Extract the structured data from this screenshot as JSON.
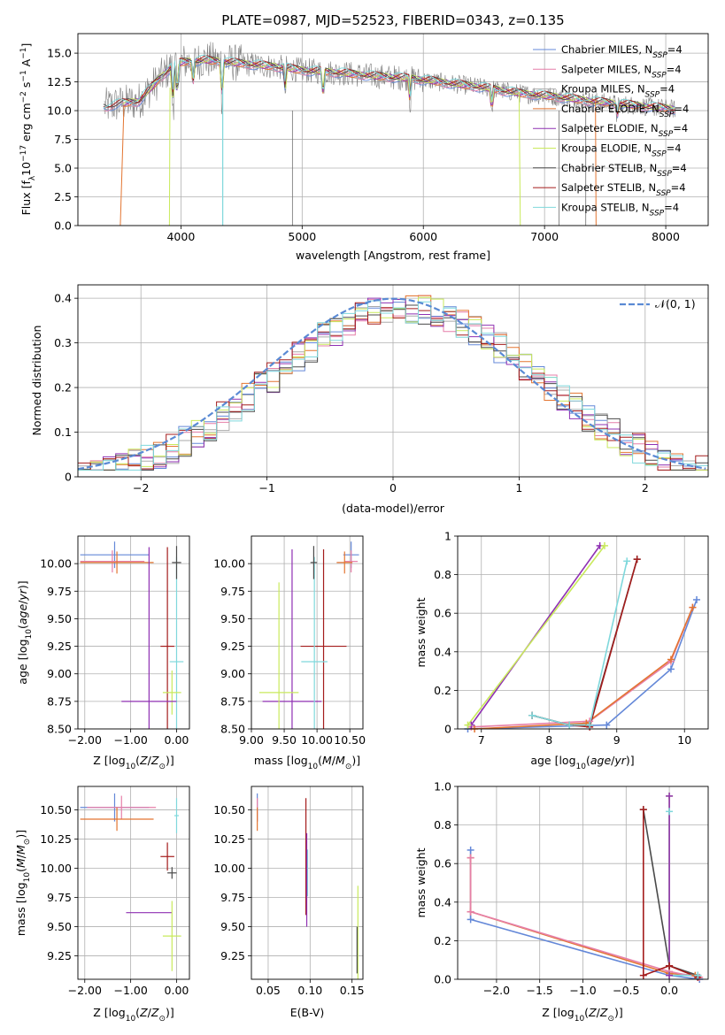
{
  "colors": {
    "Chabrier MILES": "#6488d8",
    "Salpeter MILES": "#e67fa8",
    "Kroupa MILES": "#aaaaaa",
    "Chabrier ELODIE": "#e37531",
    "Salpeter ELODIE": "#8f30b3",
    "Kroupa ELODIE": "#c9ea5c",
    "Chabrier STELIB": "#4a4a4a",
    "Salpeter STELIB": "#a41c1c",
    "Kroupa STELIB": "#7fd8dc",
    "gaussian": "#5a8ad4"
  },
  "chart_data": [
    {
      "id": "spectrum",
      "type": "line",
      "title": "PLATE=0987, MJD=52523, FIBERID=0343, z=0.135",
      "xlabel": "wavelength [Angstrom, rest frame]",
      "ylabel": "Flux [f_λ 10^-17 erg cm^-2 s^-1 A^-1]",
      "xlim": [
        3150,
        8350
      ],
      "ylim": [
        0,
        16.7
      ],
      "xticks": [
        4000,
        5000,
        6000,
        7000,
        8000
      ],
      "yticks": [
        0.0,
        2.5,
        5.0,
        7.5,
        10.0,
        12.5,
        15.0
      ],
      "legend": "top-right",
      "series": [
        {
          "name": "Chabrier MILES, N_SSP=4"
        },
        {
          "name": "Salpeter MILES, N_SSP=4"
        },
        {
          "name": "Kroupa MILES, N_SSP=4"
        },
        {
          "name": "Chabrier ELODIE, N_SSP=4"
        },
        {
          "name": "Salpeter ELODIE, N_SSP=4"
        },
        {
          "name": "Kroupa ELODIE, N_SSP=4"
        },
        {
          "name": "Chabrier STELIB, N_SSP=4"
        },
        {
          "name": "Salpeter STELIB, N_SSP=4"
        },
        {
          "name": "Kroupa STELIB, N_SSP=4"
        }
      ],
      "continuum": {
        "x": [
          3350,
          3500,
          3650,
          3800,
          3900,
          4000,
          4200,
          4500,
          4800,
          5000,
          5300,
          5600,
          5900,
          6200,
          6500,
          6800,
          7100,
          7400,
          7700,
          8000,
          8100
        ],
        "y": [
          10.3,
          10.6,
          10.8,
          12.5,
          13.6,
          14.2,
          14.4,
          14.1,
          13.8,
          13.5,
          13.3,
          13.0,
          12.8,
          12.4,
          12.0,
          11.5,
          11.2,
          10.8,
          10.5,
          10.2,
          10.1
        ]
      }
    },
    {
      "id": "residuals",
      "type": "bar",
      "xlabel": "(data-model)/error",
      "ylabel": "Normed distribution",
      "xlim": [
        -2.5,
        2.5
      ],
      "ylim": [
        0,
        0.43
      ],
      "xticks": [
        -2,
        -1,
        0,
        1,
        2
      ],
      "yticks": [
        0.0,
        0.1,
        0.2,
        0.3,
        0.4
      ],
      "legend": "top-right",
      "gaussian_label": "N(0,1)"
    },
    {
      "id": "age-vs-Z",
      "type": "scatter",
      "xlabel": "Z [log10(Z/Z⊙)]",
      "ylabel": "age [log10(age/yr)]",
      "xlim": [
        -2.15,
        0.28
      ],
      "ylim": [
        8.5,
        10.25
      ],
      "xticks": [
        -2,
        -1,
        0
      ],
      "yticks": [
        8.5,
        8.75,
        9.0,
        9.25,
        9.5,
        9.75,
        10.0
      ],
      "points": [
        {
          "m": "Chabrier MILES",
          "x": -1.35,
          "y": 10.08,
          "xe": 0.75,
          "ye": 0.12
        },
        {
          "m": "Salpeter MILES",
          "x": -1.4,
          "y": 10.02,
          "xe": 0.7,
          "ye": 0.1
        },
        {
          "m": "Chabrier ELODIE",
          "x": -1.3,
          "y": 10.01,
          "xe": 0.8,
          "ye": 0.1
        },
        {
          "m": "Salpeter STELIB",
          "x": -0.2,
          "y": 9.25,
          "xe": 0.15,
          "ye": 0.9
        },
        {
          "m": "Kroupa STELIB",
          "x": 0.0,
          "y": 9.11,
          "xe": 0.15,
          "ye": 0.95
        },
        {
          "m": "Kroupa ELODIE",
          "x": -0.1,
          "y": 8.83,
          "xe": 0.2,
          "ye": 0.2
        },
        {
          "m": "Salpeter ELODIE",
          "x": -0.6,
          "y": 8.75,
          "xe": 0.6,
          "ye": 1.4
        },
        {
          "m": "Chabrier STELIB",
          "x": 0.0,
          "y": 10.01,
          "xe": 0.1,
          "ye": 0.15
        }
      ]
    },
    {
      "id": "age-vs-mass",
      "type": "scatter",
      "xlabel": "mass [log10(M/M⊙)]",
      "ylabel": "",
      "xlim": [
        9.0,
        10.7
      ],
      "ylim": [
        8.5,
        10.25
      ],
      "xticks": [
        9.0,
        9.5,
        10.0,
        10.5
      ],
      "yticks": [
        8.5,
        8.75,
        9.0,
        9.25,
        9.5,
        9.75,
        10.0
      ],
      "points": [
        {
          "m": "Chabrier MILES",
          "x": 10.52,
          "y": 10.08,
          "xe": 0.12,
          "ye": 0.12
        },
        {
          "m": "Salpeter MILES",
          "x": 10.52,
          "y": 10.02,
          "xe": 0.1,
          "ye": 0.1
        },
        {
          "m": "Chabrier ELODIE",
          "x": 10.42,
          "y": 10.01,
          "xe": 0.12,
          "ye": 0.1
        },
        {
          "m": "Salpeter ELODIE",
          "x": 9.62,
          "y": 8.75,
          "xe": 0.45,
          "ye": 1.38
        },
        {
          "m": "Kroupa ELODIE",
          "x": 9.42,
          "y": 8.83,
          "xe": 0.3,
          "ye": 1.0
        },
        {
          "m": "Salpeter STELIB",
          "x": 10.1,
          "y": 9.25,
          "xe": 0.35,
          "ye": 0.88
        },
        {
          "m": "Kroupa STELIB",
          "x": 9.96,
          "y": 9.11,
          "xe": 0.2,
          "ye": 0.95
        },
        {
          "m": "Chabrier STELIB",
          "x": 9.95,
          "y": 10.01,
          "xe": 0.05,
          "ye": 0.15
        }
      ]
    },
    {
      "id": "weight-vs-age",
      "type": "line",
      "xlabel": "age [log10(age/yr)]",
      "ylabel": "mass weight",
      "xlim": [
        6.65,
        10.35
      ],
      "ylim": [
        0,
        1.0
      ],
      "xticks": [
        7,
        8,
        9,
        10
      ],
      "yticks": [
        0.0,
        0.2,
        0.4,
        0.6,
        0.8,
        1.0
      ],
      "series": [
        {
          "name": "Chabrier MILES",
          "x": [
            6.8,
            8.85,
            9.8,
            10.18
          ],
          "y": [
            0.0,
            0.02,
            0.31,
            0.67
          ]
        },
        {
          "name": "Salpeter MILES",
          "x": [
            6.85,
            8.6,
            9.8,
            10.12
          ],
          "y": [
            0.01,
            0.04,
            0.35,
            0.63
          ]
        },
        {
          "name": "Chabrier ELODIE",
          "x": [
            6.9,
            8.55,
            9.8,
            10.12
          ],
          "y": [
            0.0,
            0.03,
            0.36,
            0.63
          ]
        },
        {
          "name": "Salpeter ELODIE",
          "x": [
            6.85,
            8.75
          ],
          "y": [
            0.02,
            0.95
          ]
        },
        {
          "name": "Kroupa ELODIE",
          "x": [
            6.8,
            8.82
          ],
          "y": [
            0.02,
            0.95
          ]
        },
        {
          "name": "Chabrier STELIB",
          "x": [
            7.75,
            8.3,
            8.6,
            9.3
          ],
          "y": [
            0.07,
            0.02,
            0.02,
            0.88
          ]
        },
        {
          "name": "Salpeter STELIB",
          "x": [
            7.75,
            8.3,
            8.6,
            9.3
          ],
          "y": [
            0.07,
            0.02,
            0.01,
            0.88
          ]
        },
        {
          "name": "Kroupa STELIB",
          "x": [
            7.75,
            8.3,
            8.6,
            9.15
          ],
          "y": [
            0.07,
            0.02,
            0.02,
            0.87
          ]
        }
      ]
    },
    {
      "id": "mass-vs-Z",
      "type": "scatter",
      "xlabel": "Z [log10(Z/Z⊙)]",
      "ylabel": "mass [log10(M/M⊙)]",
      "xlim": [
        -2.15,
        0.28
      ],
      "ylim": [
        9.05,
        10.7
      ],
      "xticks": [
        -2,
        -1,
        0
      ],
      "yticks": [
        9.25,
        9.5,
        9.75,
        10.0,
        10.25,
        10.5
      ],
      "points": [
        {
          "m": "Chabrier MILES",
          "x": -1.35,
          "y": 10.52,
          "xe": 0.75,
          "ye": 0.12
        },
        {
          "m": "Salpeter MILES",
          "x": -1.2,
          "y": 10.52,
          "xe": 0.75,
          "ye": 0.1
        },
        {
          "m": "Chabrier ELODIE",
          "x": -1.3,
          "y": 10.42,
          "xe": 0.8,
          "ye": 0.1
        },
        {
          "m": "Salpeter STELIB",
          "x": -0.2,
          "y": 10.1,
          "xe": 0.15,
          "ye": 0.12
        },
        {
          "m": "Kroupa STELIB",
          "x": 0.0,
          "y": 10.45,
          "xe": 0.05,
          "ye": 0.15
        },
        {
          "m": "Chabrier STELIB",
          "x": -0.1,
          "y": 9.96,
          "xe": 0.1,
          "ye": 0.05
        },
        {
          "m": "Salpeter ELODIE",
          "x": -0.6,
          "y": 9.62,
          "xe": 0.5,
          "ye": 0.0
        },
        {
          "m": "Kroupa ELODIE",
          "x": -0.1,
          "y": 9.42,
          "xe": 0.2,
          "ye": 0.3
        }
      ]
    },
    {
      "id": "mass-vs-ebv",
      "type": "scatter",
      "xlabel": "E(B-V)",
      "ylabel": "",
      "xlim": [
        0.03,
        0.163
      ],
      "ylim": [
        9.05,
        10.7
      ],
      "xticks": [
        0.05,
        0.1,
        0.15
      ],
      "yticks": [
        9.25,
        9.5,
        9.75,
        10.0,
        10.25,
        10.5
      ],
      "points": [
        {
          "m": "Chabrier MILES",
          "x": 0.037,
          "y": 10.52,
          "xe": 0.0,
          "ye": 0.12
        },
        {
          "m": "Salpeter MILES",
          "x": 0.037,
          "y": 10.5,
          "xe": 0.0,
          "ye": 0.1
        },
        {
          "m": "Chabrier ELODIE",
          "x": 0.037,
          "y": 10.42,
          "xe": 0.0,
          "ye": 0.1
        },
        {
          "m": "Salpeter STELIB",
          "x": 0.095,
          "y": 10.1,
          "xe": 0.0,
          "ye": 0.5
        },
        {
          "m": "Kroupa STELIB",
          "x": 0.097,
          "y": 9.96,
          "xe": 0.0,
          "ye": 0.2
        },
        {
          "m": "Salpeter ELODIE",
          "x": 0.096,
          "y": 9.9,
          "xe": 0.0,
          "ye": 0.4
        },
        {
          "m": "Kroupa ELODIE",
          "x": 0.157,
          "y": 9.42,
          "xe": 0.0,
          "ye": 0.43
        },
        {
          "m": "Chabrier STELIB",
          "x": 0.156,
          "y": 9.3,
          "xe": 0.0,
          "ye": 0.2
        }
      ]
    },
    {
      "id": "weight-vs-Z",
      "type": "line",
      "xlabel": "Z [log10(Z/Z⊙)]",
      "ylabel": "mass weight",
      "xlim": [
        -2.45,
        0.45
      ],
      "ylim": [
        0,
        1.0
      ],
      "xticks": [
        -2.0,
        -1.5,
        -1.0,
        -0.5,
        0.0
      ],
      "yticks": [
        0.0,
        0.2,
        0.4,
        0.6,
        0.8,
        1.0
      ],
      "series": [
        {
          "name": "Chabrier MILES",
          "x": [
            -2.3,
            -2.3,
            0.0,
            0.35
          ],
          "y": [
            0.67,
            0.31,
            0.02,
            0.0
          ]
        },
        {
          "name": "Chabrier ELODIE",
          "x": [
            -2.3,
            -2.3,
            0.0,
            0.3
          ],
          "y": [
            0.63,
            0.35,
            0.03,
            0.02
          ]
        },
        {
          "name": "Salpeter MILES",
          "x": [
            -2.3,
            -2.3,
            0.0,
            0.35
          ],
          "y": [
            0.63,
            0.35,
            0.04,
            0.01
          ]
        },
        {
          "name": "Chabrier STELIB",
          "x": [
            -0.3,
            0.0,
            0.33
          ],
          "y": [
            0.88,
            0.07,
            0.02
          ]
        },
        {
          "name": "Salpeter STELIB",
          "x": [
            -0.3,
            -0.3,
            0.0,
            0.33
          ],
          "y": [
            0.88,
            0.02,
            0.07,
            0.01
          ]
        },
        {
          "name": "Kroupa STELIB",
          "x": [
            0.0,
            0.0,
            0.33
          ],
          "y": [
            0.87,
            0.02,
            0.02
          ]
        },
        {
          "name": "Kroupa ELODIE",
          "x": [
            0.0,
            0.0
          ],
          "y": [
            0.95,
            0.02
          ]
        },
        {
          "name": "Salpeter ELODIE",
          "x": [
            0.0,
            0.0
          ],
          "y": [
            0.95,
            0.02
          ]
        }
      ]
    }
  ]
}
